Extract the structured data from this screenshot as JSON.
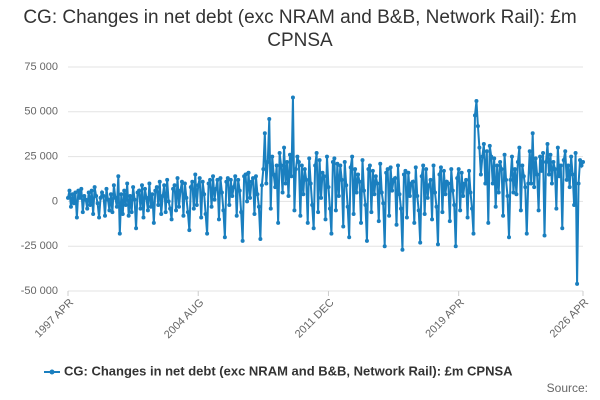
{
  "chart_data": {
    "type": "line",
    "title": "CG: Changes in net debt (exc NRAM and B&B, Network Rail): £m CPNSA",
    "source": "Source:",
    "categories": [
      "1997 APR",
      null,
      null,
      null,
      null,
      null,
      null,
      null,
      null,
      null,
      null,
      null,
      null,
      null,
      null,
      null,
      null,
      null,
      null,
      null,
      null,
      null,
      null,
      null,
      null,
      null,
      null,
      null,
      null,
      null,
      null,
      null,
      null,
      null,
      null,
      null,
      null,
      null,
      null,
      null,
      null,
      null,
      null,
      null,
      null,
      null,
      null,
      null,
      null,
      null,
      null,
      null,
      null,
      null,
      null,
      null,
      null,
      null,
      null,
      null,
      null,
      null,
      null,
      null,
      null,
      null,
      null,
      null,
      null,
      null,
      null,
      null,
      null,
      null,
      null,
      null,
      null,
      null,
      null,
      null,
      null,
      null,
      null,
      null,
      null,
      null,
      null,
      null,
      "2004 AUG",
      null,
      null,
      null,
      null,
      null,
      null,
      null,
      null,
      null,
      null,
      null,
      null,
      null,
      null,
      null,
      null,
      null,
      null,
      null,
      null,
      null,
      null,
      null,
      null,
      null,
      null,
      null,
      null,
      null,
      null,
      null,
      null,
      null,
      null,
      null,
      null,
      null,
      null,
      null,
      null,
      null,
      null,
      null,
      null,
      null,
      null,
      null,
      null,
      null,
      null,
      null,
      null,
      null,
      null,
      null,
      null,
      null,
      null,
      null,
      null,
      null,
      null,
      null,
      null,
      null,
      null,
      null,
      null,
      null,
      null,
      null,
      null,
      null,
      null,
      null,
      null,
      null,
      null,
      null,
      null,
      null,
      null,
      null,
      null,
      null,
      null,
      null,
      "2011 DEC",
      null,
      null,
      null,
      null,
      null,
      null,
      null,
      null,
      null,
      null,
      null,
      null,
      null,
      null,
      null,
      null,
      null,
      null,
      null,
      null,
      null,
      null,
      null,
      null,
      null,
      null,
      null,
      null,
      null,
      null,
      null,
      null,
      null,
      null,
      null,
      null,
      null,
      null,
      null,
      null,
      null,
      null,
      null,
      null,
      null,
      null,
      null,
      null,
      null,
      null,
      null,
      null,
      null,
      null,
      null,
      null,
      null,
      null,
      null,
      null,
      null,
      null,
      null,
      null,
      null,
      null,
      null,
      null,
      null,
      null,
      null,
      null,
      null,
      null,
      null,
      null,
      null,
      null,
      null,
      null,
      null,
      null,
      null,
      null,
      null,
      null,
      null,
      "2019 APR",
      null,
      null,
      null,
      null,
      null,
      null,
      null,
      null,
      null,
      null,
      null,
      null,
      null,
      null,
      null,
      null,
      null,
      null,
      null,
      null,
      null,
      null,
      null,
      null,
      null,
      null,
      null,
      null,
      null,
      null,
      null,
      null,
      null,
      null,
      null,
      null,
      null,
      null,
      null,
      null,
      null,
      null,
      null,
      null,
      null,
      null,
      null,
      null,
      null,
      null,
      null,
      null,
      null,
      null,
      null,
      null,
      null,
      null,
      null,
      null,
      null,
      null,
      null,
      null,
      null,
      null,
      null,
      null,
      null,
      null,
      null,
      null,
      null,
      null,
      null,
      null,
      null,
      null,
      null,
      null,
      null,
      null,
      null,
      "2026 APR"
    ],
    "series": [
      {
        "name": "CG: Changes in net debt (exc NRAM and B&B, Network Rail): £m CPNSA",
        "color": "#1a7fbf",
        "values": [
          2000,
          6000,
          -3000,
          4000,
          -1000,
          5000,
          -9000,
          6000,
          2000,
          7000,
          -6000,
          3000,
          1000,
          -4000,
          5000,
          -2000,
          6000,
          -7000,
          8000,
          3000,
          -1000,
          -9000,
          2000,
          5000,
          3000,
          -8000,
          7000,
          1000,
          -5000,
          4000,
          -6000,
          9000,
          2000,
          -3000,
          14000,
          -18000,
          4000,
          -7000,
          6000,
          -2000,
          10000,
          -8000,
          3000,
          -6000,
          8000,
          1000,
          -15000,
          5000,
          6000,
          -4000,
          9000,
          -9000,
          7000,
          2000,
          -5000,
          10000,
          -3000,
          4000,
          -12000,
          6000,
          8000,
          -2000,
          11000,
          -7000,
          3000,
          9000,
          -6000,
          12000,
          0,
          -4000,
          -10000,
          7000,
          9000,
          -5000,
          13000,
          -3000,
          6000,
          11000,
          -8000,
          10000,
          2000,
          -6000,
          -16000,
          8000,
          11000,
          -4000,
          15000,
          -2000,
          9000,
          13000,
          -9000,
          11000,
          4000,
          -7000,
          -18000,
          10000,
          12000,
          -3000,
          14000,
          1000,
          7000,
          12000,
          -10000,
          13000,
          5000,
          -5000,
          -20000,
          11000,
          13000,
          -2000,
          12000,
          3000,
          8000,
          14000,
          -8000,
          12000,
          6000,
          -6000,
          -22000,
          14000,
          15000,
          0,
          16000,
          2000,
          11000,
          13000,
          -7000,
          14000,
          4000,
          -3000,
          -21000,
          9000,
          18000,
          38000,
          10000,
          22000,
          46000,
          -4000,
          25000,
          15000,
          8000,
          20000,
          -12000,
          27000,
          20000,
          5000,
          30000,
          10000,
          22000,
          3000,
          26000,
          14000,
          58000,
          -5000,
          18000,
          25000,
          22000,
          -8000,
          20000,
          4000,
          18000,
          12000,
          -12000,
          24000,
          10000,
          -2000,
          -15000,
          20000,
          27000,
          -6000,
          23000,
          2000,
          16000,
          14000,
          -10000,
          25000,
          8000,
          -4000,
          -18000,
          22000,
          24000,
          -5000,
          21000,
          3000,
          20000,
          12000,
          -14000,
          22000,
          9000,
          -3000,
          -20000,
          19000,
          25000,
          -7000,
          18000,
          5000,
          15000,
          11000,
          -12000,
          23000,
          6000,
          -2000,
          -22000,
          18000,
          20000,
          -6000,
          17000,
          4000,
          14000,
          10000,
          -11000,
          21000,
          5000,
          -1000,
          -25000,
          16000,
          18000,
          -8000,
          19000,
          6000,
          12000,
          13000,
          -13000,
          20000,
          4000,
          -4000,
          -27000,
          15000,
          17000,
          -9000,
          16000,
          3000,
          10000,
          11000,
          -12000,
          19000,
          3000,
          -5000,
          -23000,
          14000,
          20000,
          -7000,
          18000,
          2000,
          9000,
          12000,
          -10000,
          20000,
          5000,
          -3000,
          -24000,
          15000,
          19000,
          -6000,
          17000,
          4000,
          11000,
          10000,
          -11000,
          18000,
          6000,
          -2000,
          -25000,
          13000,
          18000,
          -5000,
          16000,
          3000,
          10000,
          12000,
          -9000,
          17000,
          5000,
          -4000,
          -18000,
          48000,
          56000,
          42000,
          30000,
          15000,
          25000,
          32000,
          10000,
          28000,
          -12000,
          31000,
          25000,
          10000,
          24000,
          -3000,
          20000,
          5000,
          22000,
          18000,
          -8000,
          26000,
          12000,
          3000,
          -20000,
          12000,
          25000,
          5000,
          18000,
          4000,
          22000,
          30000,
          -5000,
          20000,
          14000,
          8000,
          -18000,
          10000,
          28000,
          10000,
          38000,
          8000,
          24000,
          15000,
          -5000,
          25000,
          17000,
          27000,
          -19000,
          22000,
          32000,
          15000,
          26000,
          10000,
          22000,
          18000,
          -4000,
          30000,
          14000,
          20000,
          -15000,
          23000,
          28000,
          12000,
          20000,
          8000,
          25000,
          15000,
          -2000,
          27000,
          -46000,
          10000,
          23000,
          20000,
          22000
        ]
      }
    ],
    "ylim": [
      -50000,
      75000
    ],
    "yticks": [
      {
        "value": -50000,
        "label": "-50 000"
      },
      {
        "value": -25000,
        "label": "-25 000"
      },
      0,
      {
        "value": 25000,
        "label": "25 000"
      },
      {
        "value": 50000,
        "label": "50 000"
      },
      {
        "value": 75000,
        "label": "75 000"
      }
    ],
    "grid": true
  }
}
